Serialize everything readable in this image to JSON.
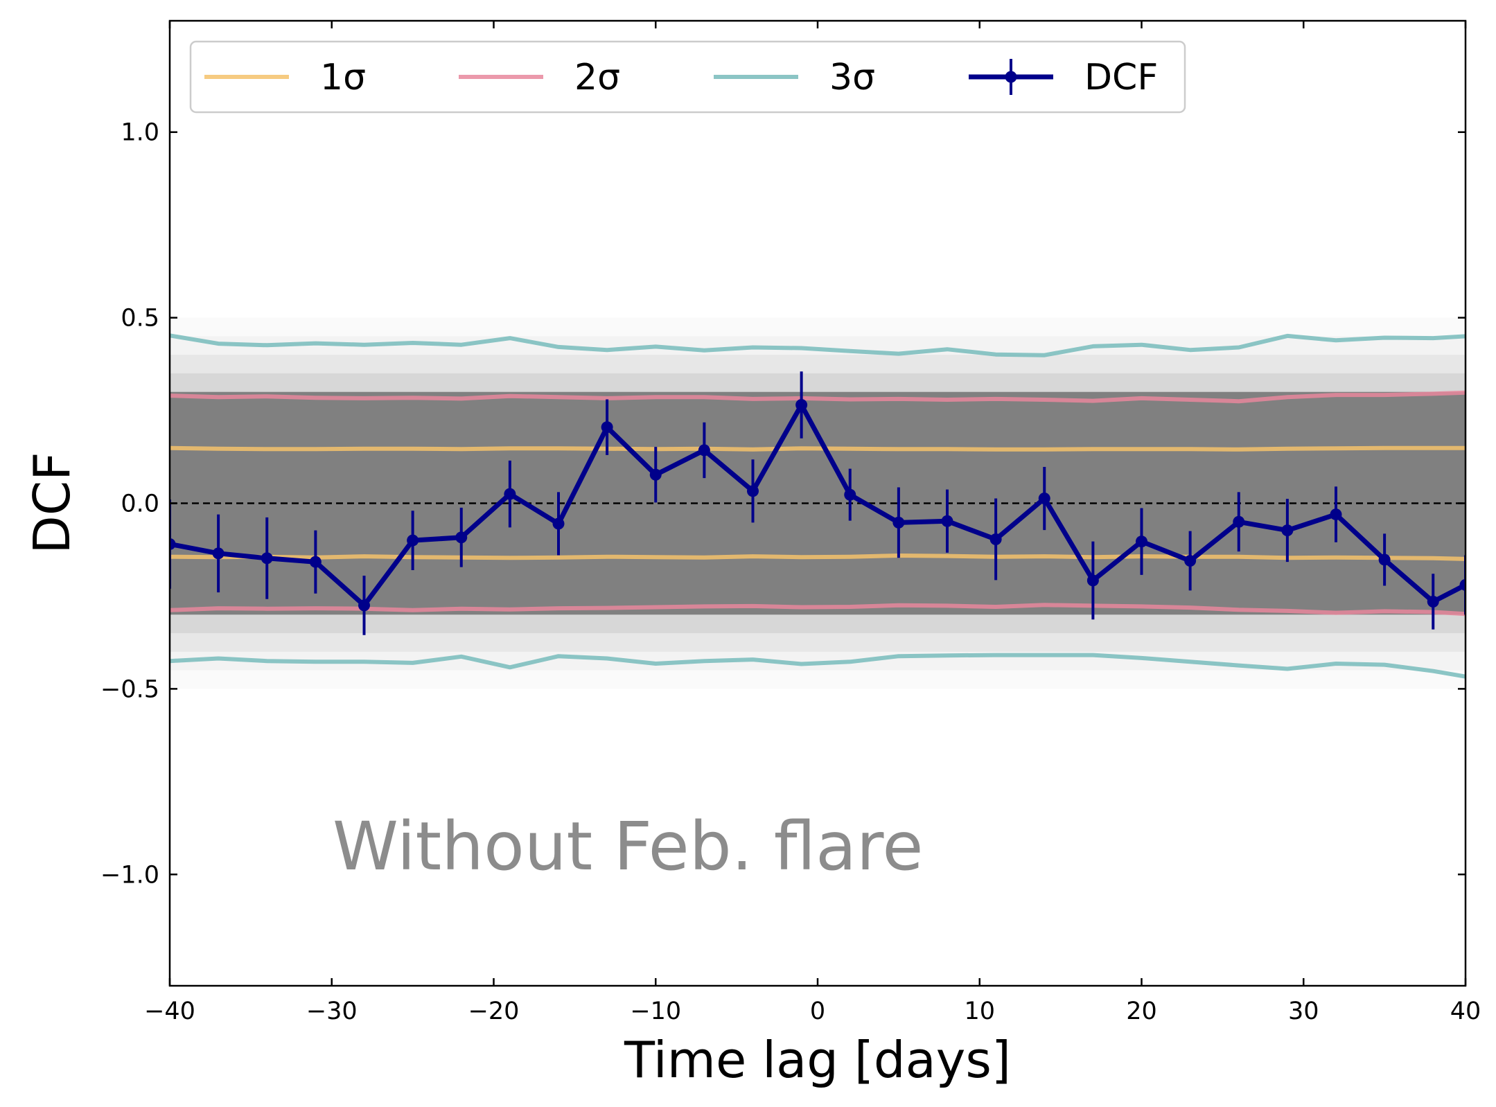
{
  "chart_data": {
    "type": "line",
    "xlabel": "Time lag [days]",
    "ylabel": "DCF",
    "annotation": "Without Feb. flare",
    "xlim": [
      -40,
      40
    ],
    "ylim": [
      -1.3,
      1.3
    ],
    "xticks": [
      -40,
      -30,
      -20,
      -10,
      0,
      10,
      20,
      30,
      40
    ],
    "xtick_labels": [
      "−40",
      "−30",
      "−20",
      "−10",
      "0",
      "10",
      "20",
      "30",
      "40"
    ],
    "yticks": [
      -1.0,
      -0.5,
      0.0,
      0.5,
      1.0
    ],
    "ytick_labels": [
      "−1.0",
      "−0.5",
      "0.0",
      "0.5",
      "1.0"
    ],
    "grid": false,
    "legend_position": "top",
    "reference_line": {
      "y": 0.0,
      "style": "dashed",
      "color": "#000000"
    },
    "simulation_band": {
      "color": "#808080",
      "upper": 0.3,
      "lower": -0.3
    },
    "x": [
      -40,
      -37,
      -34,
      -31,
      -28,
      -25,
      -22,
      -19,
      -16,
      -13,
      -10,
      -7,
      -4,
      -1,
      2,
      5,
      8,
      11,
      14,
      17,
      20,
      23,
      26,
      29,
      32,
      35,
      38,
      40
    ],
    "series": [
      {
        "name": "DCF",
        "color": "#00008b",
        "values": [
          -0.11,
          -0.135,
          -0.148,
          -0.158,
          -0.275,
          -0.1,
          -0.092,
          0.025,
          -0.055,
          0.205,
          0.077,
          0.143,
          0.033,
          0.265,
          0.023,
          -0.052,
          -0.048,
          -0.097,
          0.013,
          -0.208,
          -0.103,
          -0.155,
          -0.05,
          -0.073,
          -0.03,
          -0.152,
          -0.265,
          -0.22
        ],
        "errors": [
          0.12,
          0.105,
          0.11,
          0.085,
          0.08,
          0.08,
          0.08,
          0.09,
          0.085,
          0.075,
          0.075,
          0.075,
          0.085,
          0.09,
          0.07,
          0.095,
          0.085,
          0.11,
          0.085,
          0.105,
          0.09,
          0.08,
          0.08,
          0.085,
          0.075,
          0.07,
          0.075,
          0.08
        ]
      },
      {
        "name": "1σ upper",
        "color": "#f5c26b",
        "values": [
          0.149,
          0.147,
          0.146,
          0.146,
          0.147,
          0.147,
          0.146,
          0.148,
          0.148,
          0.147,
          0.146,
          0.147,
          0.145,
          0.148,
          0.147,
          0.146,
          0.146,
          0.145,
          0.145,
          0.146,
          0.146,
          0.146,
          0.145,
          0.147,
          0.148,
          0.149,
          0.149,
          0.149
        ]
      },
      {
        "name": "1σ lower",
        "color": "#f5c26b",
        "values": [
          -0.144,
          -0.145,
          -0.144,
          -0.146,
          -0.143,
          -0.145,
          -0.146,
          -0.147,
          -0.146,
          -0.144,
          -0.145,
          -0.146,
          -0.143,
          -0.145,
          -0.144,
          -0.141,
          -0.142,
          -0.144,
          -0.143,
          -0.145,
          -0.143,
          -0.144,
          -0.144,
          -0.147,
          -0.146,
          -0.147,
          -0.148,
          -0.15
        ]
      },
      {
        "name": "2σ upper",
        "color": "#e8879c",
        "values": [
          0.29,
          0.286,
          0.288,
          0.284,
          0.283,
          0.284,
          0.282,
          0.289,
          0.286,
          0.283,
          0.286,
          0.286,
          0.281,
          0.283,
          0.28,
          0.281,
          0.279,
          0.281,
          0.279,
          0.276,
          0.283,
          0.279,
          0.275,
          0.286,
          0.292,
          0.292,
          0.295,
          0.298
        ]
      },
      {
        "name": "2σ lower",
        "color": "#e8879c",
        "values": [
          -0.288,
          -0.283,
          -0.284,
          -0.283,
          -0.284,
          -0.288,
          -0.284,
          -0.286,
          -0.283,
          -0.282,
          -0.28,
          -0.278,
          -0.277,
          -0.28,
          -0.279,
          -0.275,
          -0.276,
          -0.279,
          -0.274,
          -0.276,
          -0.278,
          -0.281,
          -0.287,
          -0.29,
          -0.295,
          -0.291,
          -0.293,
          -0.298
        ]
      },
      {
        "name": "3σ upper",
        "color": "#77bbbb",
        "values": [
          0.452,
          0.43,
          0.426,
          0.431,
          0.427,
          0.432,
          0.427,
          0.445,
          0.421,
          0.413,
          0.422,
          0.412,
          0.42,
          0.418,
          0.41,
          0.403,
          0.415,
          0.401,
          0.399,
          0.423,
          0.427,
          0.413,
          0.42,
          0.451,
          0.439,
          0.446,
          0.445,
          0.45
        ]
      },
      {
        "name": "3σ lower",
        "color": "#77bbbb",
        "values": [
          -0.425,
          -0.418,
          -0.425,
          -0.427,
          -0.427,
          -0.43,
          -0.413,
          -0.442,
          -0.412,
          -0.418,
          -0.432,
          -0.425,
          -0.421,
          -0.433,
          -0.427,
          -0.412,
          -0.41,
          -0.409,
          -0.409,
          -0.409,
          -0.417,
          -0.427,
          -0.437,
          -0.446,
          -0.432,
          -0.435,
          -0.452,
          -0.467
        ]
      }
    ],
    "legend": [
      {
        "label": "1σ",
        "color": "#f5c26b"
      },
      {
        "label": "2σ",
        "color": "#e8879c"
      },
      {
        "label": "3σ",
        "color": "#77bbbb"
      },
      {
        "label": "DCF",
        "color": "#00008b"
      }
    ]
  }
}
